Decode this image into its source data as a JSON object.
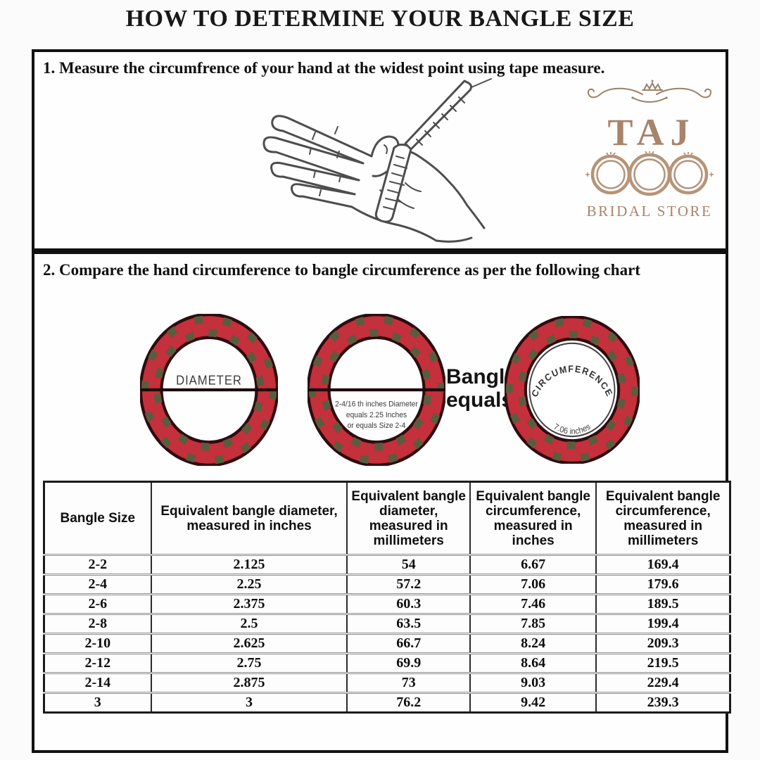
{
  "title": "HOW TO DETERMINE YOUR BANGLE SIZE",
  "step1": {
    "heading": "1. Measure the circumfrence of your hand at the widest point using tape measure."
  },
  "logo": {
    "brand": "TAJ",
    "subtitle": "BRIDAL STORE",
    "accent_color": "#a8846a"
  },
  "step2": {
    "heading": "2. Compare the hand circumference to bangle circumference as per the following chart",
    "diagram": {
      "diameter_label": "DIAMETER",
      "example_caption": [
        "2-4/16 th inches Diameter",
        "equals 2.25 Inches",
        "or equals Size 2-4"
      ],
      "equals_label": [
        "Bangle",
        "equals"
      ],
      "circumference_label": "CIRCUMFERENCE",
      "circumference_value": "7.06 inches",
      "ring_colors": {
        "red": "#c4303c",
        "olive": "#5b5c3e",
        "outline": "#2e0c10"
      }
    }
  },
  "size_table": {
    "columns": [
      "Bangle Size",
      "Equivalent bangle diameter, measured in inches",
      "Equivalent bangle diameter, measured in millimeters",
      "Equivalent bangle circumference, measured in inches",
      "Equivalent bangle circumference, measured in millimeters"
    ],
    "rows": [
      [
        "2-2",
        "2.125",
        "54",
        "6.67",
        "169.4"
      ],
      [
        "2-4",
        "2.25",
        "57.2",
        "7.06",
        "179.6"
      ],
      [
        "2-6",
        "2.375",
        "60.3",
        "7.46",
        "189.5"
      ],
      [
        "2-8",
        "2.5",
        "63.5",
        "7.85",
        "199.4"
      ],
      [
        "2-10",
        "2.625",
        "66.7",
        "8.24",
        "209.3"
      ],
      [
        "2-12",
        "2.75",
        "69.9",
        "8.64",
        "219.5"
      ],
      [
        "2-14",
        "2.875",
        "73",
        "9.03",
        "229.4"
      ],
      [
        "3",
        "3",
        "76.2",
        "9.42",
        "239.3"
      ]
    ]
  }
}
